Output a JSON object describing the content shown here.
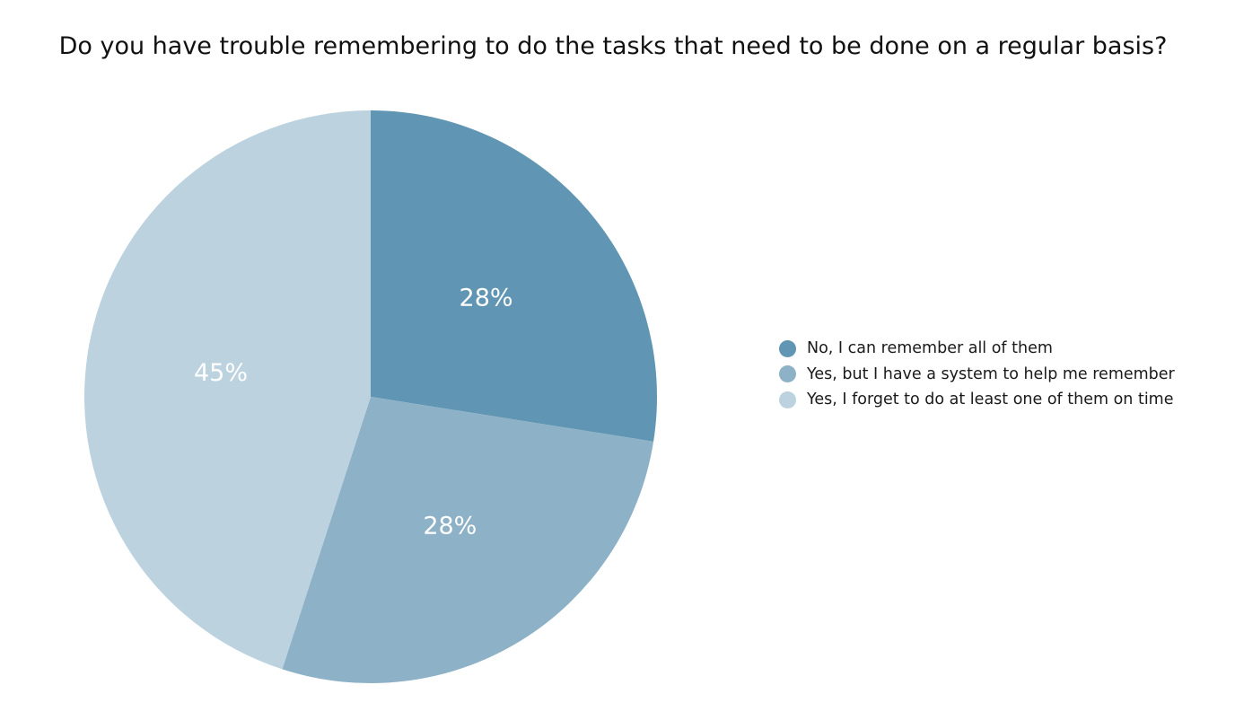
{
  "chart_data": {
    "type": "pie",
    "title": "Do you have trouble remembering to do the tasks that need to be done on a regular basis?",
    "legend_position": "right",
    "slices": [
      {
        "name": "No, I can remember all of them",
        "value": 27.5,
        "label": "28%",
        "color": "#6096b3"
      },
      {
        "name": "Yes, but I have a system to help me remember",
        "value": 27.5,
        "label": "28%",
        "color": "#8db1c6"
      },
      {
        "name": "Yes, I forget to do at least one of them on time",
        "value": 45,
        "label": "45%",
        "color": "#bcd2df"
      }
    ]
  }
}
